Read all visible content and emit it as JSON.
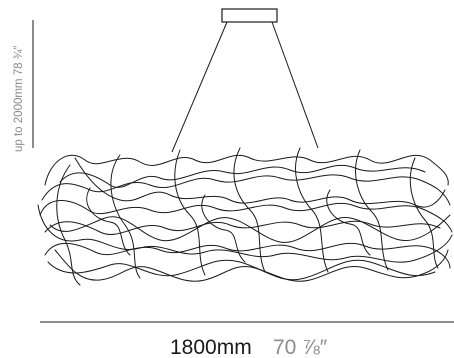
{
  "dimensions": {
    "width_metric": "1800mm",
    "width_imperial": "70 ⅞″",
    "drop_label": "up to 2000mm 78 ¾″"
  },
  "colors": {
    "line": "#1a1a1a",
    "dimension_text_primary": "#1a1a1a",
    "dimension_text_secondary": "#8c8c8c",
    "background": "#ffffff"
  }
}
